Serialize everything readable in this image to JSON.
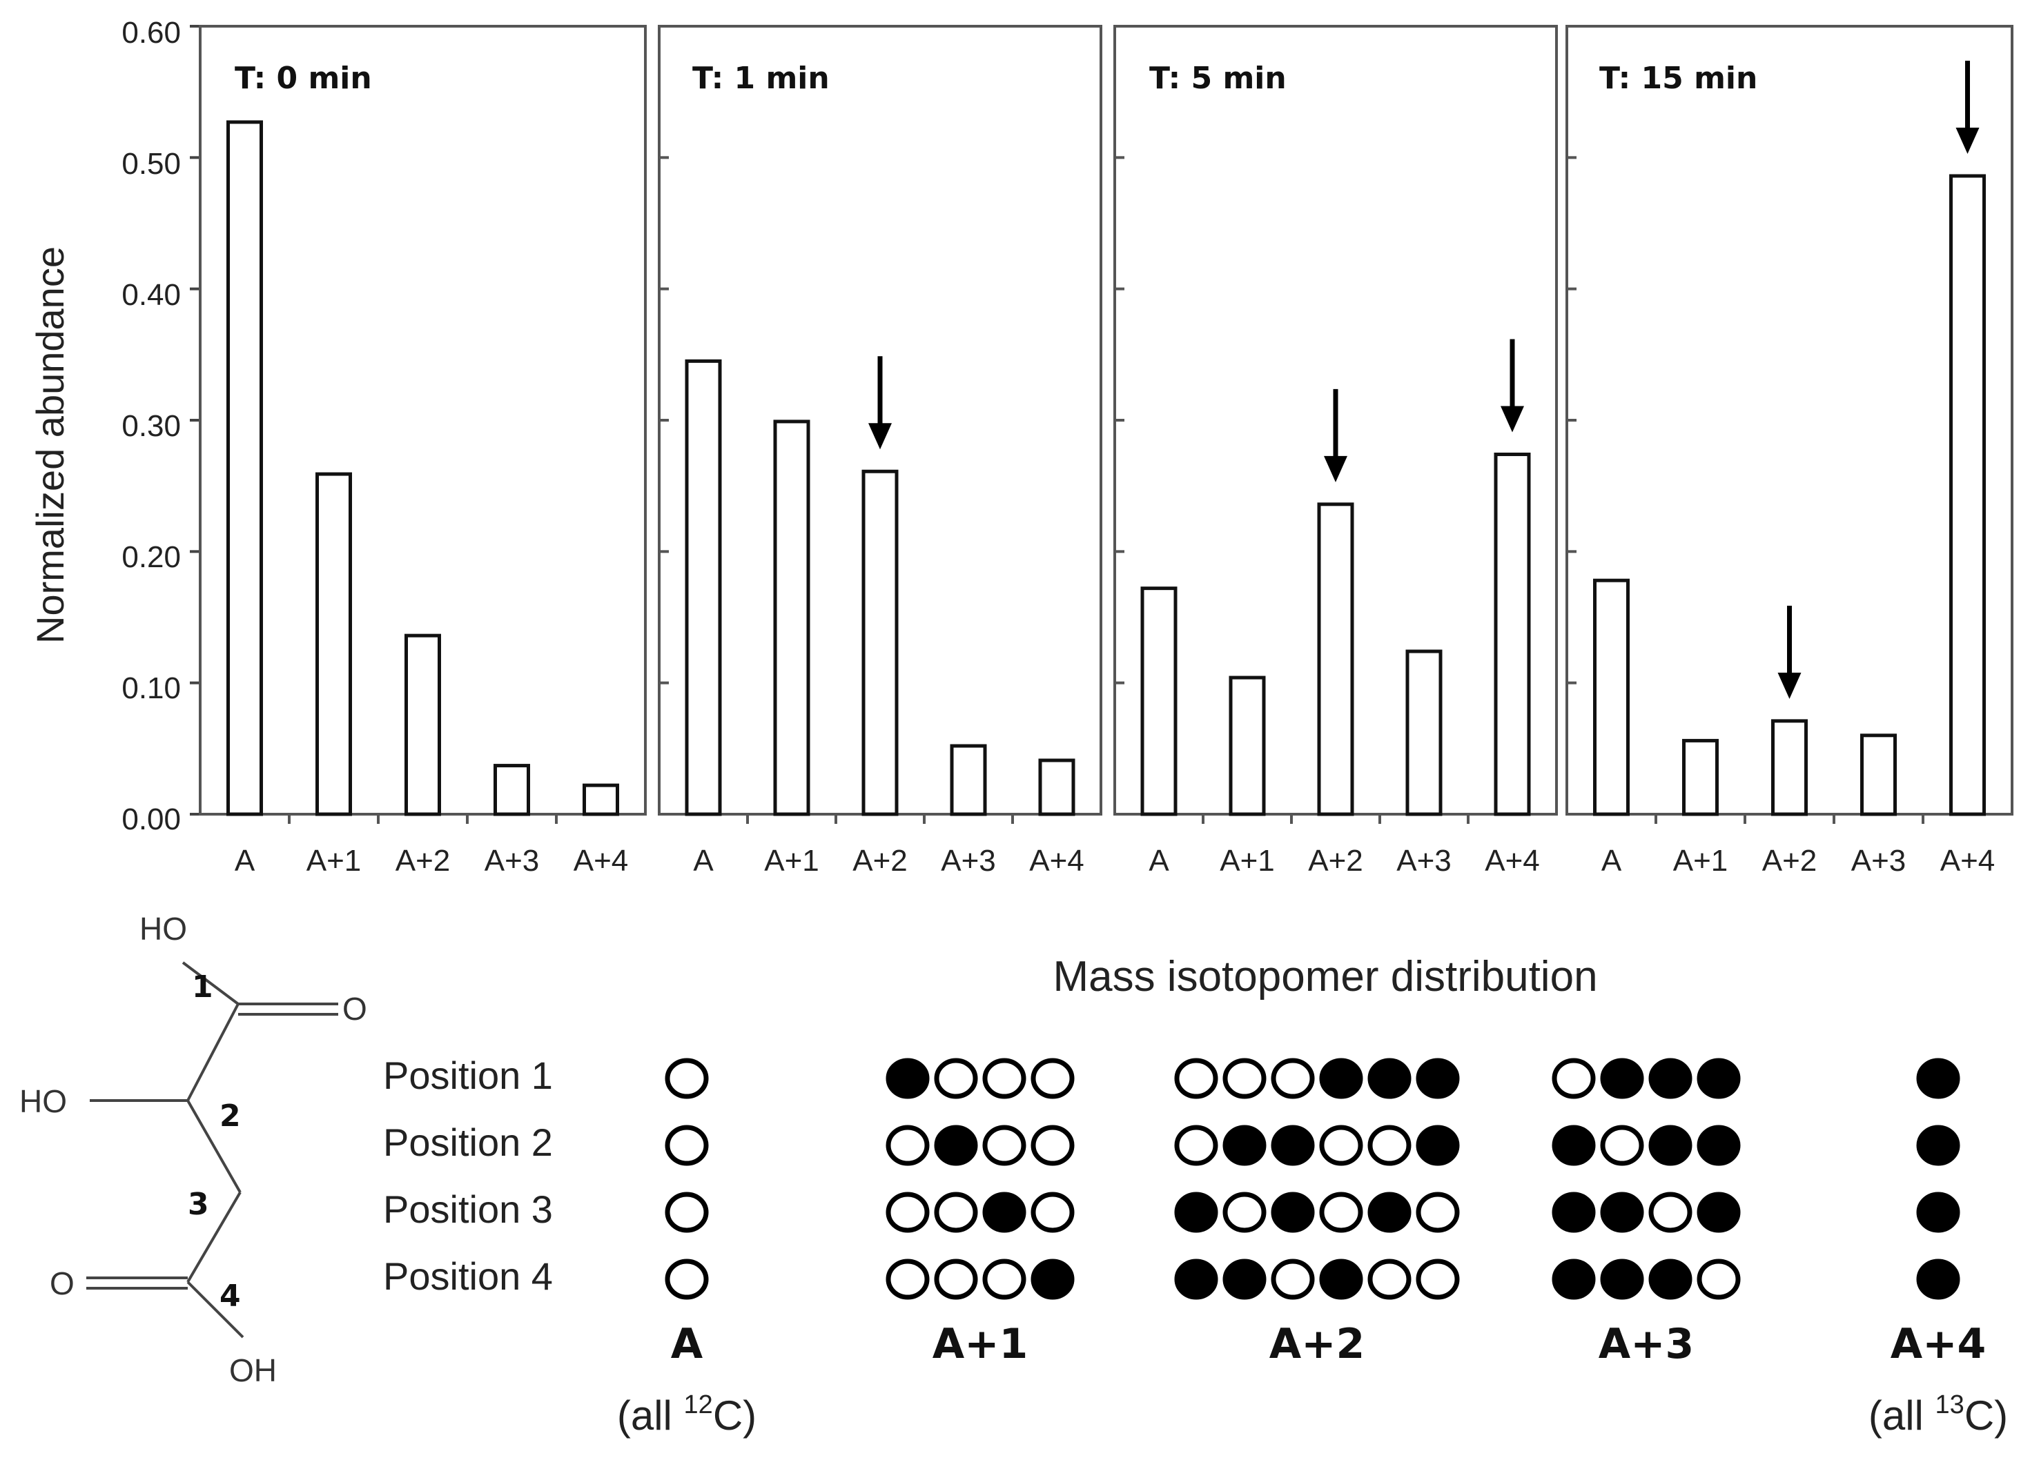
{
  "chart_data": {
    "type": "bar",
    "ylabel": "Normalized  abundance",
    "ylim": [
      0,
      0.6
    ],
    "y_ticks": [
      "0.00",
      "0.10",
      "0.20",
      "0.30",
      "0.40",
      "0.50",
      "0.60"
    ],
    "categories": [
      "A",
      "A+1",
      "A+2",
      "A+3",
      "A+4"
    ],
    "panels": [
      {
        "title": "T: 0 min",
        "values": [
          0.527,
          0.259,
          0.136,
          0.037,
          0.022
        ],
        "arrows": []
      },
      {
        "title": "T: 1 min",
        "values": [
          0.345,
          0.299,
          0.261,
          0.052,
          0.041
        ],
        "arrows": [
          "A+2"
        ]
      },
      {
        "title": "T: 5 min",
        "values": [
          0.172,
          0.104,
          0.236,
          0.124,
          0.274
        ],
        "arrows": [
          "A+2",
          "A+4"
        ]
      },
      {
        "title": "T: 15 min",
        "values": [
          0.178,
          0.056,
          0.071,
          0.06,
          0.486
        ],
        "arrows": [
          "A+2",
          "A+4"
        ]
      }
    ]
  },
  "molecule": {
    "atoms": {
      "ho_top": "HO",
      "o_right": "O",
      "ho_left": "HO",
      "o_left": "O",
      "oh_bottom": "OH"
    },
    "numbers": [
      "1",
      "2",
      "3",
      "4"
    ]
  },
  "isotopomer": {
    "title": "Mass isotopomer distribution",
    "positions": [
      "Position 1",
      "Position 2",
      "Position 3",
      "Position 4"
    ],
    "groups": [
      {
        "label": "A",
        "sublabel_pre": "(all ",
        "sublabel_sup": "12",
        "sublabel_post": "C)",
        "rows": [
          [
            0
          ],
          [
            0
          ],
          [
            0
          ],
          [
            0
          ]
        ]
      },
      {
        "label": "A+1",
        "rows": [
          [
            1,
            0,
            0,
            0
          ],
          [
            0,
            1,
            0,
            0
          ],
          [
            0,
            0,
            1,
            0
          ],
          [
            0,
            0,
            0,
            1
          ]
        ]
      },
      {
        "label": "A+2",
        "rows": [
          [
            0,
            0,
            0,
            1,
            1,
            1
          ],
          [
            0,
            1,
            1,
            0,
            0,
            1
          ],
          [
            1,
            0,
            1,
            0,
            1,
            0
          ],
          [
            1,
            1,
            0,
            1,
            0,
            0
          ]
        ]
      },
      {
        "label": "A+3",
        "rows": [
          [
            0,
            1,
            1,
            1
          ],
          [
            1,
            0,
            1,
            1
          ],
          [
            1,
            1,
            0,
            1
          ],
          [
            1,
            1,
            1,
            0
          ]
        ]
      },
      {
        "label": "A+4",
        "sublabel_pre": "(all ",
        "sublabel_sup": "13",
        "sublabel_post": "C)",
        "rows": [
          [
            1
          ],
          [
            1
          ],
          [
            1
          ],
          [
            1
          ]
        ]
      }
    ]
  }
}
